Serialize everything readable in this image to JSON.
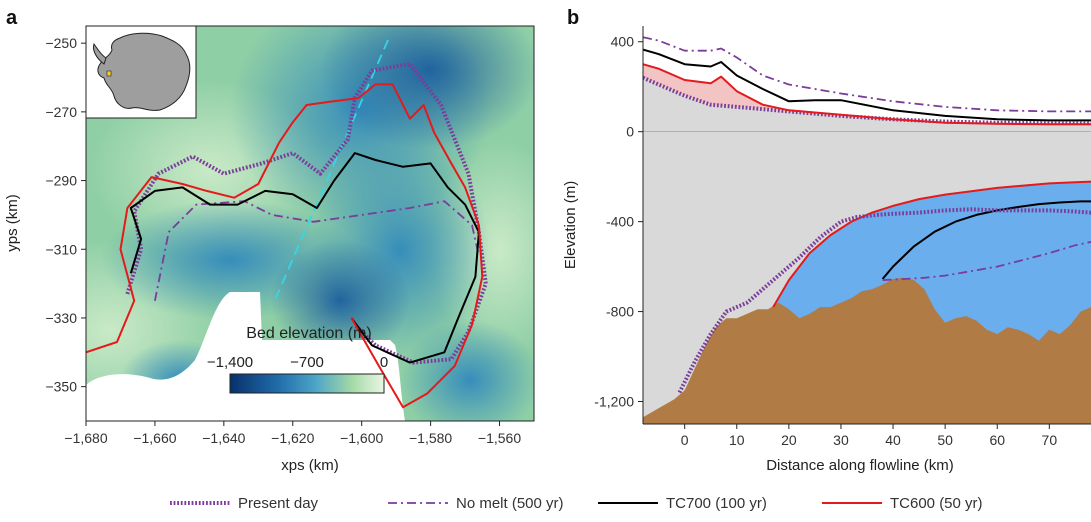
{
  "colors": {
    "present_day": "#7a3d99",
    "no_melt": "#7a3d99",
    "tc700": "#000000",
    "tc600": "#e41a1c",
    "ice": "#d9d9d9",
    "ocean": "#6aaeee",
    "bed": "#b07b45",
    "ice_red_tint": "#f2c4c4",
    "centerline": "#35d6e8",
    "antarctica": "#9e9e9e",
    "colorbar_low": "#08306b",
    "colorbar_mid": "#2b8cbe",
    "colorbar_high": "#e8f5e0"
  },
  "legend": {
    "items": [
      {
        "key": "present",
        "label": "Present day"
      },
      {
        "key": "nomelt",
        "label": "No melt (500 yr)"
      },
      {
        "key": "tc700",
        "label": "TC700 (100 yr)"
      },
      {
        "key": "tc600",
        "label": "TC600 (50 yr)"
      }
    ]
  },
  "chart_data": [
    {
      "panel": "a",
      "type": "heatmap",
      "title": "",
      "xlabel": "xps (km)",
      "ylabel": "yps (km)",
      "xlim": [
        -1680,
        -1550
      ],
      "ylim": [
        -360,
        -245
      ],
      "xticks": [
        "−1,680",
        "−1,660",
        "−1,640",
        "−1,620",
        "−1,600",
        "−1,580",
        "−1,560"
      ],
      "xtick_values": [
        -1680,
        -1660,
        -1640,
        -1620,
        -1600,
        -1580,
        -1560
      ],
      "yticks": [
        "−250",
        "−270",
        "−290",
        "−310",
        "−330",
        "−350"
      ],
      "ytick_values": [
        -250,
        -270,
        -290,
        -310,
        -330,
        -350
      ],
      "colorbar": {
        "label": "Bed elevation (m)",
        "ticks": [
          "−1,400",
          "−700",
          "0"
        ],
        "range": [
          -1400,
          0
        ]
      },
      "inset": "Antarctica locator map",
      "grounding_lines": {
        "present": [
          [
            -1668,
            -323
          ],
          [
            -1664,
            -310
          ],
          [
            -1666,
            -299
          ],
          [
            -1659,
            -288
          ],
          [
            -1649,
            -283
          ],
          [
            -1640,
            -288
          ],
          [
            -1629,
            -285
          ],
          [
            -1620,
            -282
          ],
          [
            -1612,
            -288
          ],
          [
            -1604,
            -278
          ],
          [
            -1602,
            -266
          ],
          [
            -1597,
            -258
          ],
          [
            -1586,
            -256
          ],
          [
            -1577,
            -268
          ],
          [
            -1569,
            -288
          ],
          [
            -1566,
            -305
          ],
          [
            -1564,
            -320
          ],
          [
            -1569,
            -334
          ],
          [
            -1574,
            -342
          ],
          [
            -1585,
            -343
          ],
          [
            -1596,
            -338
          ],
          [
            -1602,
            -332
          ]
        ],
        "nomelt": [
          [
            -1660,
            -325
          ],
          [
            -1656,
            -305
          ],
          [
            -1648,
            -297
          ],
          [
            -1634,
            -296
          ],
          [
            -1626,
            -300
          ],
          [
            -1614,
            -302
          ],
          [
            -1600,
            -300
          ],
          [
            -1586,
            -298
          ],
          [
            -1576,
            -296
          ],
          [
            -1568,
            -303
          ],
          [
            -1566,
            -312
          ]
        ],
        "tc700": [
          [
            -1667,
            -317
          ],
          [
            -1664,
            -307
          ],
          [
            -1667,
            -298
          ],
          [
            -1660,
            -293
          ],
          [
            -1652,
            -292
          ],
          [
            -1644,
            -297
          ],
          [
            -1636,
            -297
          ],
          [
            -1628,
            -293
          ],
          [
            -1620,
            -294
          ],
          [
            -1613,
            -298
          ],
          [
            -1608,
            -290
          ],
          [
            -1602,
            -282
          ],
          [
            -1596,
            -284
          ],
          [
            -1588,
            -286
          ],
          [
            -1580,
            -285
          ],
          [
            -1575,
            -292
          ],
          [
            -1570,
            -297
          ],
          [
            -1566,
            -305
          ],
          [
            -1567,
            -318
          ],
          [
            -1572,
            -330
          ],
          [
            -1576,
            -340
          ],
          [
            -1586,
            -343
          ],
          [
            -1597,
            -338
          ],
          [
            -1603,
            -330
          ]
        ],
        "tc600": [
          [
            -1680,
            -340
          ],
          [
            -1671,
            -337
          ],
          [
            -1666,
            -325
          ],
          [
            -1670,
            -310
          ],
          [
            -1668,
            -298
          ],
          [
            -1661,
            -289
          ],
          [
            -1652,
            -291
          ],
          [
            -1645,
            -293
          ],
          [
            -1637,
            -295
          ],
          [
            -1630,
            -291
          ],
          [
            -1624,
            -279
          ],
          [
            -1620,
            -273
          ],
          [
            -1616,
            -268
          ],
          [
            -1609,
            -267
          ],
          [
            -1601,
            -266
          ],
          [
            -1596,
            -262
          ],
          [
            -1591,
            -262
          ],
          [
            -1586,
            -272
          ],
          [
            -1582,
            -268
          ],
          [
            -1579,
            -276
          ],
          [
            -1574,
            -285
          ],
          [
            -1570,
            -292
          ],
          [
            -1566,
            -303
          ],
          [
            -1565,
            -318
          ],
          [
            -1568,
            -332
          ],
          [
            -1573,
            -344
          ],
          [
            -1581,
            -352
          ],
          [
            -1588,
            -356
          ],
          [
            -1595,
            -344
          ],
          [
            -1603,
            -330
          ]
        ]
      }
    },
    {
      "panel": "b",
      "type": "line",
      "title": "",
      "xlabel": "Distance along flowline (km)",
      "ylabel": "Elevation (m)",
      "xlim": [
        -8,
        78
      ],
      "ylim": [
        -1300,
        470
      ],
      "xticks": [
        "0",
        "10",
        "20",
        "30",
        "40",
        "50",
        "60",
        "70"
      ],
      "xtick_values": [
        0,
        10,
        20,
        30,
        40,
        50,
        60,
        70
      ],
      "yticks": [
        "400",
        "0",
        "-400",
        "-800",
        "-1,200"
      ],
      "ytick_values": [
        400,
        0,
        -400,
        -800,
        -1200
      ],
      "series": [
        {
          "key": "present",
          "x": [
            -8,
            -5,
            0,
            5,
            10,
            20,
            30,
            40,
            50,
            60,
            70,
            78
          ],
          "y": [
            240,
            210,
            160,
            120,
            110,
            90,
            70,
            55,
            45,
            40,
            38,
            38
          ]
        },
        {
          "key": "nomelt",
          "x": [
            -8,
            -5,
            0,
            5,
            7,
            10,
            15,
            20,
            30,
            40,
            50,
            60,
            70,
            78
          ],
          "y": [
            420,
            405,
            360,
            360,
            370,
            330,
            250,
            210,
            170,
            135,
            110,
            95,
            90,
            90
          ]
        },
        {
          "key": "tc700",
          "x": [
            -8,
            -5,
            0,
            5,
            7,
            10,
            15,
            20,
            25,
            30,
            40,
            50,
            60,
            70,
            78
          ],
          "y": [
            365,
            345,
            300,
            290,
            310,
            250,
            190,
            135,
            140,
            140,
            95,
            70,
            55,
            50,
            50
          ]
        },
        {
          "key": "tc600",
          "x": [
            -8,
            -5,
            0,
            5,
            7,
            10,
            15,
            20,
            30,
            40,
            50,
            60,
            70,
            78
          ],
          "y": [
            300,
            280,
            230,
            215,
            245,
            180,
            120,
            95,
            75,
            55,
            40,
            35,
            33,
            33
          ]
        }
      ],
      "lower_surfaces": {
        "present": {
          "x": [
            -1,
            2,
            5,
            8,
            12,
            15,
            18,
            22,
            26,
            30,
            33,
            37,
            40,
            45,
            50,
            55,
            60,
            65,
            70,
            75,
            78
          ],
          "y": [
            -1160,
            -1020,
            -900,
            -800,
            -760,
            -700,
            -640,
            -560,
            -470,
            -400,
            -380,
            -370,
            -365,
            -360,
            -350,
            -345,
            -350,
            -350,
            -350,
            -355,
            -360
          ]
        },
        "nomelt": {
          "x": [
            38,
            42,
            46,
            50,
            55,
            60,
            65,
            70,
            75,
            78
          ],
          "y": [
            -660,
            -655,
            -650,
            -640,
            -620,
            -600,
            -570,
            -540,
            -505,
            -490
          ]
        },
        "tc700": {
          "x": [
            38,
            40,
            44,
            48,
            52,
            56,
            60,
            64,
            68,
            72,
            76,
            78
          ],
          "y": [
            -655,
            -600,
            -510,
            -445,
            -400,
            -370,
            -350,
            -335,
            -322,
            -315,
            -310,
            -310
          ]
        },
        "tc600": {
          "x": [
            17,
            20,
            24,
            28,
            32,
            36,
            40,
            45,
            50,
            55,
            60,
            65,
            70,
            75,
            78
          ],
          "y": [
            -780,
            -660,
            -540,
            -460,
            -400,
            -360,
            -330,
            -300,
            -280,
            -265,
            -250,
            -240,
            -230,
            -225,
            -222
          ]
        }
      },
      "bed": {
        "x": [
          -8,
          -5,
          -2,
          0,
          2,
          4,
          6,
          8,
          10,
          12,
          14,
          16,
          18,
          20,
          22,
          24,
          26,
          28,
          30,
          32,
          34,
          36,
          38,
          40,
          42,
          44,
          46,
          48,
          50,
          52,
          54,
          56,
          58,
          60,
          62,
          64,
          66,
          68,
          70,
          72,
          74,
          76,
          78
        ],
        "y": [
          -1270,
          -1230,
          -1190,
          -1150,
          -1050,
          -950,
          -870,
          -830,
          -830,
          -810,
          -790,
          -790,
          -760,
          -790,
          -830,
          -810,
          -780,
          -780,
          -760,
          -740,
          -710,
          -700,
          -680,
          -655,
          -650,
          -660,
          -700,
          -790,
          -850,
          -830,
          -820,
          -840,
          -880,
          -900,
          -870,
          -880,
          -900,
          -930,
          -880,
          -900,
          -860,
          -800,
          -780
        ]
      }
    }
  ]
}
